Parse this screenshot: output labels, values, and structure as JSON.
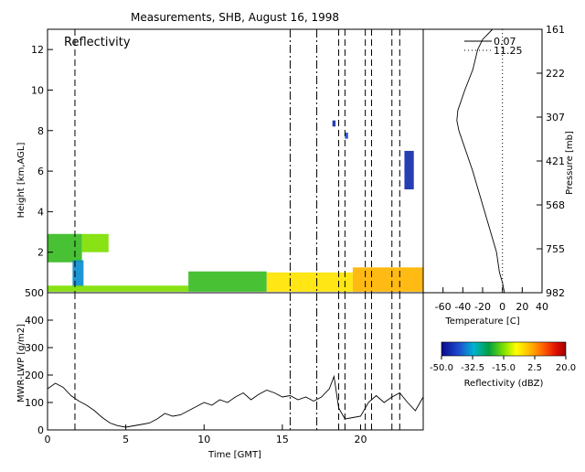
{
  "chart_data": [
    {
      "type": "heatmap",
      "title": "Measurements, SHB, August 16, 1998",
      "panel_label": "Reflectivity",
      "ylabel": "Height [km,AGL]",
      "xlim": [
        0,
        24
      ],
      "ylim": [
        0,
        13
      ],
      "yticks": [
        "2",
        "4",
        "6",
        "8",
        "10",
        "12"
      ],
      "event_lines": [
        {
          "x": 1.75,
          "style": "dashed"
        },
        {
          "x": 15.5,
          "style": "dashdot"
        },
        {
          "x": 17.2,
          "style": "dashdot"
        },
        {
          "x": 18.6,
          "style": "dashed"
        },
        {
          "x": 19.0,
          "style": "dashed"
        },
        {
          "x": 20.3,
          "style": "dashed"
        },
        {
          "x": 20.7,
          "style": "dashed"
        },
        {
          "x": 22.0,
          "style": "dashed"
        },
        {
          "x": 22.5,
          "style": "dashed"
        }
      ],
      "echo_regions": [
        {
          "t0": 0.0,
          "t1": 2.2,
          "z0": 1.5,
          "z1": 2.9,
          "dbz": -20
        },
        {
          "t0": 2.2,
          "t1": 3.9,
          "z0": 2.0,
          "z1": 2.9,
          "dbz": -15
        },
        {
          "t0": 1.6,
          "t1": 2.3,
          "z0": 0.3,
          "z1": 1.6,
          "dbz": -35
        },
        {
          "t0": 0.0,
          "t1": 9.0,
          "z0": 0.05,
          "z1": 0.35,
          "dbz": -15
        },
        {
          "t0": 9.0,
          "t1": 14.0,
          "z0": 0.05,
          "z1": 1.05,
          "dbz": -20
        },
        {
          "t0": 14.0,
          "t1": 19.5,
          "z0": 0.05,
          "z1": 1.0,
          "dbz": -5
        },
        {
          "t0": 19.5,
          "t1": 24.0,
          "z0": 0.05,
          "z1": 1.25,
          "dbz": 0
        },
        {
          "t0": 22.8,
          "t1": 23.4,
          "z0": 5.1,
          "z1": 7.0,
          "dbz": -45
        },
        {
          "t0": 18.2,
          "t1": 18.4,
          "z0": 8.2,
          "z1": 8.5,
          "dbz": -45
        },
        {
          "t0": 19.0,
          "t1": 19.2,
          "z0": 7.6,
          "z1": 7.9,
          "dbz": -40
        }
      ]
    },
    {
      "type": "line",
      "ylabel": "MWR-LWP [g/m2]",
      "xlabel": "Time [GMT]",
      "xlim": [
        0,
        24
      ],
      "ylim": [
        0,
        500
      ],
      "xticks": [
        "0",
        "5",
        "10",
        "15",
        "20"
      ],
      "yticks": [
        "0",
        "100",
        "200",
        "300",
        "400",
        "500"
      ],
      "x": [
        0,
        0.5,
        1.0,
        1.5,
        2.0,
        2.5,
        3.0,
        3.5,
        4.0,
        4.5,
        5.0,
        5.5,
        6.0,
        6.5,
        7.0,
        7.5,
        8.0,
        8.5,
        9.0,
        9.5,
        10.0,
        10.5,
        11.0,
        11.5,
        12.0,
        12.5,
        13.0,
        13.5,
        14.0,
        14.5,
        15.0,
        15.5,
        16.0,
        16.5,
        17.0,
        17.5,
        18.0,
        18.3,
        18.6,
        19.0,
        19.5,
        20.0,
        20.5,
        21.0,
        21.5,
        22.0,
        22.5,
        23.0,
        23.5,
        24.0
      ],
      "y": [
        150,
        170,
        155,
        125,
        105,
        90,
        70,
        45,
        25,
        15,
        10,
        15,
        20,
        25,
        40,
        60,
        50,
        55,
        70,
        85,
        100,
        90,
        110,
        100,
        120,
        135,
        110,
        130,
        145,
        135,
        120,
        125,
        110,
        120,
        105,
        120,
        150,
        195,
        80,
        40,
        45,
        50,
        100,
        125,
        100,
        120,
        135,
        100,
        70,
        120
      ]
    },
    {
      "type": "line",
      "xlabel": "Temperature [C]",
      "ylabel_right": "Pressure [mb]",
      "xlim": [
        -80,
        40
      ],
      "xticks": [
        "-60",
        "-40",
        "-20",
        "0",
        "20",
        "40"
      ],
      "pressure_ticks": [
        "161",
        "222",
        "307",
        "421",
        "568",
        "755",
        "982"
      ],
      "legend": [
        {
          "label": "0.07",
          "style": "solid"
        },
        {
          "label": "11.25",
          "style": "dotted"
        }
      ],
      "series": [
        {
          "values": [
            [
              -10,
              13
            ],
            [
              -20,
              12.5
            ],
            [
              -25,
              12
            ],
            [
              -30,
              11
            ],
            [
              -38,
              10
            ],
            [
              -45,
              9
            ],
            [
              -46,
              8.5
            ],
            [
              -44,
              8
            ],
            [
              -37,
              7
            ],
            [
              -30,
              6
            ],
            [
              -24,
              5
            ],
            [
              -18,
              4
            ],
            [
              -12,
              3
            ],
            [
              -6,
              2
            ],
            [
              -3,
              1
            ],
            [
              0,
              0.5
            ],
            [
              2,
              0
            ]
          ]
        },
        {
          "values": [
            [
              0,
              13
            ],
            [
              0,
              0
            ]
          ]
        }
      ]
    },
    {
      "type": "heatmap",
      "colorbar_label": "Reflectivity (dBZ)",
      "ticks": [
        "-50.0",
        "-32.5",
        "-15.0",
        "2.5",
        "20.0"
      ],
      "range": [
        -50,
        20
      ]
    }
  ]
}
